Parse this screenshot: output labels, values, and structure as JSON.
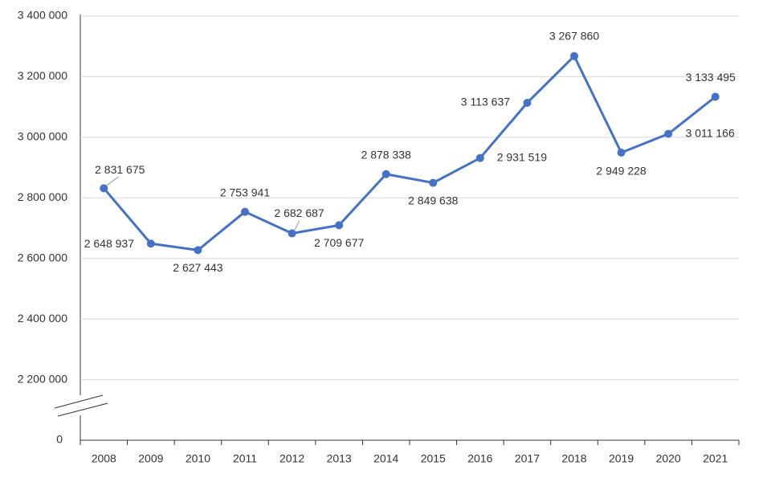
{
  "chart_data": {
    "type": "line",
    "categories": [
      "2008",
      "2009",
      "2010",
      "2011",
      "2012",
      "2013",
      "2014",
      "2015",
      "2016",
      "2017",
      "2018",
      "2019",
      "2020",
      "2021"
    ],
    "series": [
      {
        "color": "#4472c4",
        "values": [
          2831675,
          2648937,
          2627443,
          2753941,
          2682687,
          2709677,
          2878338,
          2849638,
          2931519,
          3113637,
          3267860,
          2949228,
          3011166,
          3133495
        ],
        "value_labels": [
          "2 831 675",
          "2 648 937",
          "2 627 443",
          "2 753 941",
          "2 682 687",
          "2 709 677",
          "2 878 338",
          "2 849 638",
          "2 931 519",
          "3 113 637",
          "3 267 860",
          "2 949 228",
          "3 011 166",
          "3 133 495"
        ]
      }
    ],
    "ylim": [
      0,
      3400000
    ],
    "yticks": [
      0,
      {
        "value": 2200000,
        "label": "2 200 000"
      },
      {
        "value": 2400000,
        "label": "2 400 000"
      },
      {
        "value": 2600000,
        "label": "2 600 000"
      },
      {
        "value": 2800000,
        "label": "2 800 000"
      },
      {
        "value": 3000000,
        "label": "3 000 000"
      },
      {
        "value": 3200000,
        "label": "3 200 000"
      },
      {
        "value": 3400000,
        "label": "3 400 000"
      }
    ],
    "axis_break": true,
    "grid": true
  }
}
